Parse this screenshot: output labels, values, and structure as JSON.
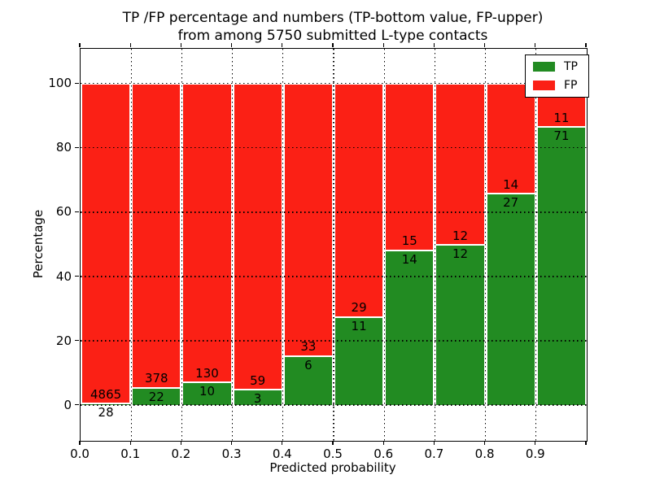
{
  "chart_data": {
    "type": "bar",
    "stacked": true,
    "title_lines": [
      "TP /FP percentage and numbers (TP-bottom value, FP-upper)",
      "from among 5750 submitted L-type contacts"
    ],
    "xlabel": "Predicted probability",
    "ylabel": "Percentage",
    "x_tick_labels": [
      "0.0",
      "0.1",
      "0.2",
      "0.3",
      "0.4",
      "0.5",
      "0.6",
      "0.7",
      "0.8",
      "0.9"
    ],
    "y_ticks": [
      0,
      20,
      40,
      60,
      80,
      100
    ],
    "xlim": [
      0.0,
      1.0
    ],
    "ylim": [
      -11,
      111
    ],
    "grid": true,
    "legend_position": "upper right",
    "series": [
      {
        "name": "TP",
        "color": "#228b22",
        "counts": [
          28,
          22,
          10,
          3,
          6,
          11,
          14,
          12,
          27,
          71
        ]
      },
      {
        "name": "FP",
        "color": "#fb2015",
        "counts": [
          4865,
          378,
          130,
          59,
          33,
          29,
          15,
          12,
          14,
          11
        ]
      }
    ],
    "bins": [
      {
        "range": [
          0.0,
          0.1
        ],
        "tp": 28,
        "fp": 4865
      },
      {
        "range": [
          0.1,
          0.2
        ],
        "tp": 22,
        "fp": 378
      },
      {
        "range": [
          0.2,
          0.3
        ],
        "tp": 10,
        "fp": 130
      },
      {
        "range": [
          0.3,
          0.4
        ],
        "tp": 3,
        "fp": 59
      },
      {
        "range": [
          0.4,
          0.5
        ],
        "tp": 6,
        "fp": 33
      },
      {
        "range": [
          0.5,
          0.6
        ],
        "tp": 11,
        "fp": 29
      },
      {
        "range": [
          0.6,
          0.7
        ],
        "tp": 14,
        "fp": 15
      },
      {
        "range": [
          0.7,
          0.8
        ],
        "tp": 12,
        "fp": 12
      },
      {
        "range": [
          0.8,
          0.9
        ],
        "tp": 27,
        "fp": 14
      },
      {
        "range": [
          0.9,
          1.0
        ],
        "tp": 71,
        "fp": 11
      }
    ]
  }
}
